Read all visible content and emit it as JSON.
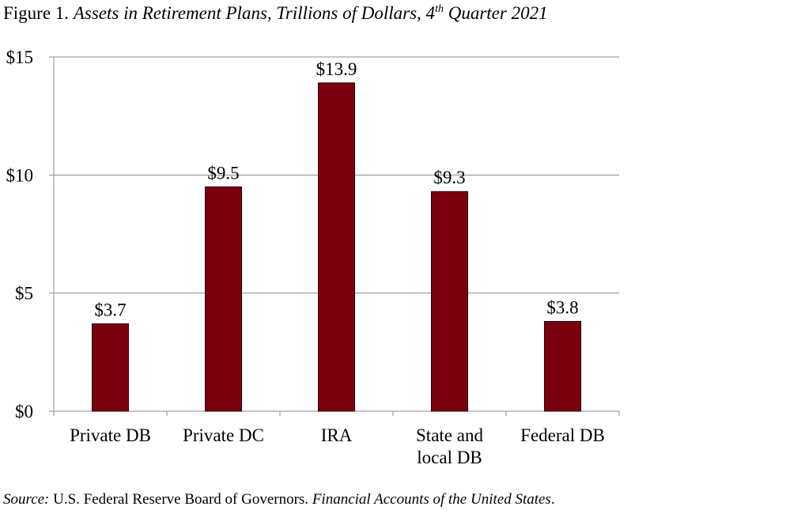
{
  "figure": {
    "label": "Figure 1.",
    "title_pre": "Assets in Retirement Plans, Trillions of Dollars, 4",
    "title_sup": "th",
    "title_post": " Quarter 2021"
  },
  "source": {
    "label": "Source:",
    "text": "U.S. Federal Reserve Board of Governors.",
    "publication": "Financial Accounts of the United States",
    "end": "."
  },
  "colors": {
    "bar": "#7a0010",
    "bar_stroke": "#2a0005",
    "grid": "#8c8c8c",
    "axis": "#8c8c8c"
  },
  "chart_data": {
    "type": "bar",
    "categories": [
      "Private DB",
      "Private DC",
      "IRA",
      "State and local DB",
      "Federal DB"
    ],
    "category_lines": [
      [
        "Private DB"
      ],
      [
        "Private DC"
      ],
      [
        "IRA"
      ],
      [
        "State and",
        "local DB"
      ],
      [
        "Federal DB"
      ]
    ],
    "values": [
      3.7,
      9.5,
      13.9,
      9.3,
      3.8
    ],
    "data_labels": [
      "$3.7",
      "$9.5",
      "$13.9",
      "$9.3",
      "$3.8"
    ],
    "ylim": [
      0,
      15
    ],
    "yticks": [
      0,
      5,
      10,
      15
    ],
    "ytick_labels": [
      "$0",
      "$5",
      "$10",
      "$15"
    ],
    "grid": true,
    "xlabel": "",
    "ylabel": ""
  }
}
